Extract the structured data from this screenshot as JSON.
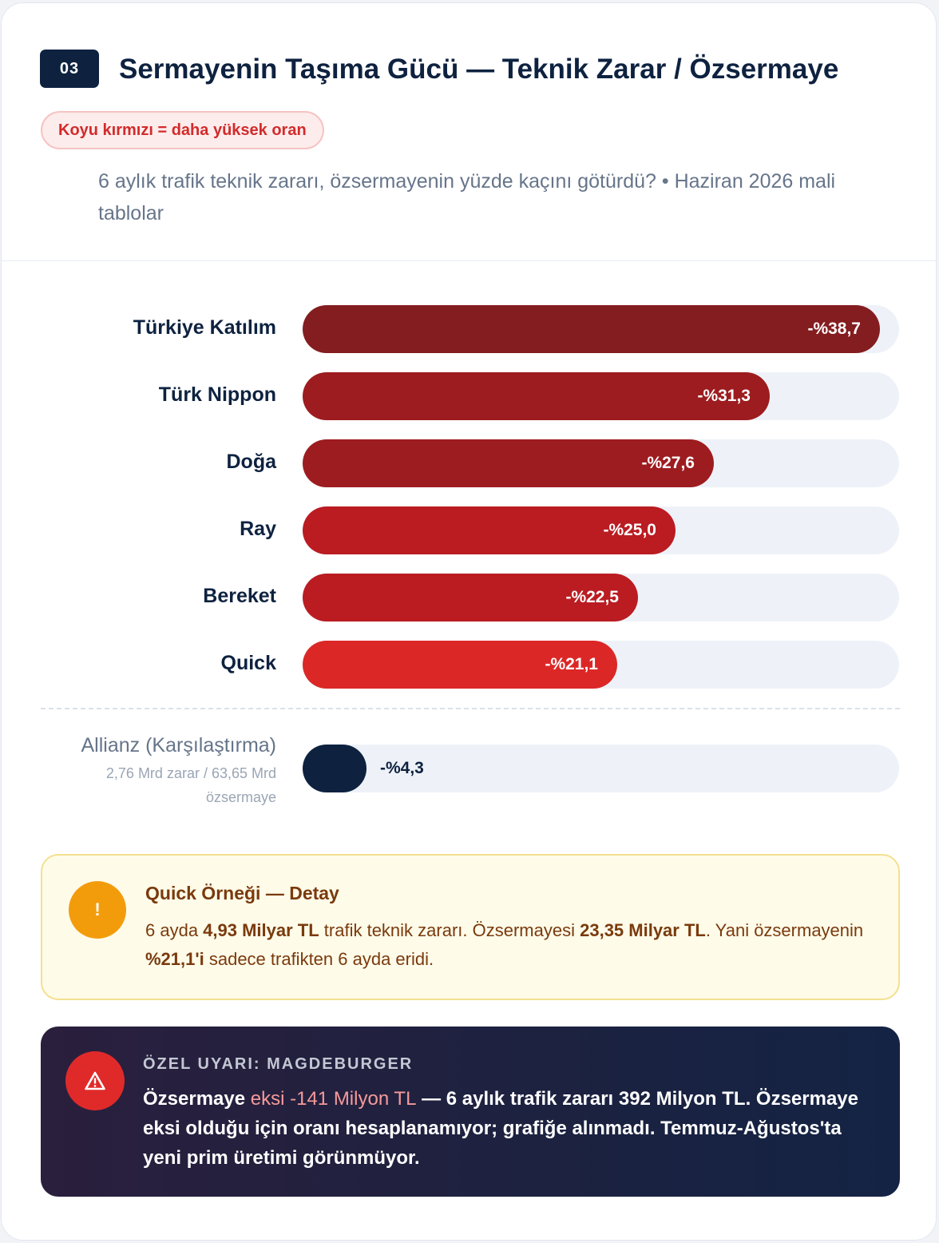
{
  "header": {
    "badge": "03",
    "title": "Sermayenin Taşıma Gücü — Teknik Zarar / Özsermaye",
    "legend_pill": "Koyu kırmızı = daha yüksek oran",
    "subtitle": "6 aylık trafik teknik zararı, özsermayenin yüzde kaçını götürdü? • Haziran 2026 mali tablolar"
  },
  "chart_data": {
    "type": "bar",
    "orientation": "horizontal",
    "categories": [
      "Türkiye Katılım",
      "Türk Nippon",
      "Doğa",
      "Ray",
      "Bereket",
      "Quick"
    ],
    "values": [
      -38.7,
      -31.3,
      -27.6,
      -25.0,
      -22.5,
      -21.1
    ],
    "value_labels": [
      "-%38,7",
      "-%31,3",
      "-%27,6",
      "-%25,0",
      "-%22,5",
      "-%21,1"
    ],
    "colors": [
      "#841d1f",
      "#9d1c1f",
      "#9d1c1f",
      "#ba1c22",
      "#ba1c22",
      "#dc2727"
    ],
    "xlim": [
      0,
      40
    ],
    "comparison": {
      "label": "Allianz (Karşılaştırma)",
      "sublabel": "2,76 Mrd zarar / 63,65 Mrd özsermaye",
      "value": -4.3,
      "value_label": "-%4,3",
      "color": "#0e2240"
    }
  },
  "note": {
    "icon": "!",
    "title": "Quick Örneği — Detay",
    "p1": "6 ayda ",
    "b1": "4,93 Milyar TL",
    "p2": " trafik teknik zararı. Özsermayesi ",
    "b2": "23,35 Milyar TL",
    "p3": ". Yani özsermayenin ",
    "b3": "%21,1'i",
    "p4": " sadece trafikten 6 ayda eridi."
  },
  "warning": {
    "kicker": "ÖZEL UYARI: MAGDEBURGER",
    "t1": "Özsermaye ",
    "hl": "eksi -141 Milyon TL",
    "t2": " — 6 aylık trafik zararı 392 Milyon TL. Özsermaye eksi olduğu için oranı hesaplanamıyor; grafiğe alınmadı. Temmuz-Ağustos'ta yeni prim üretimi görünmüyor."
  }
}
